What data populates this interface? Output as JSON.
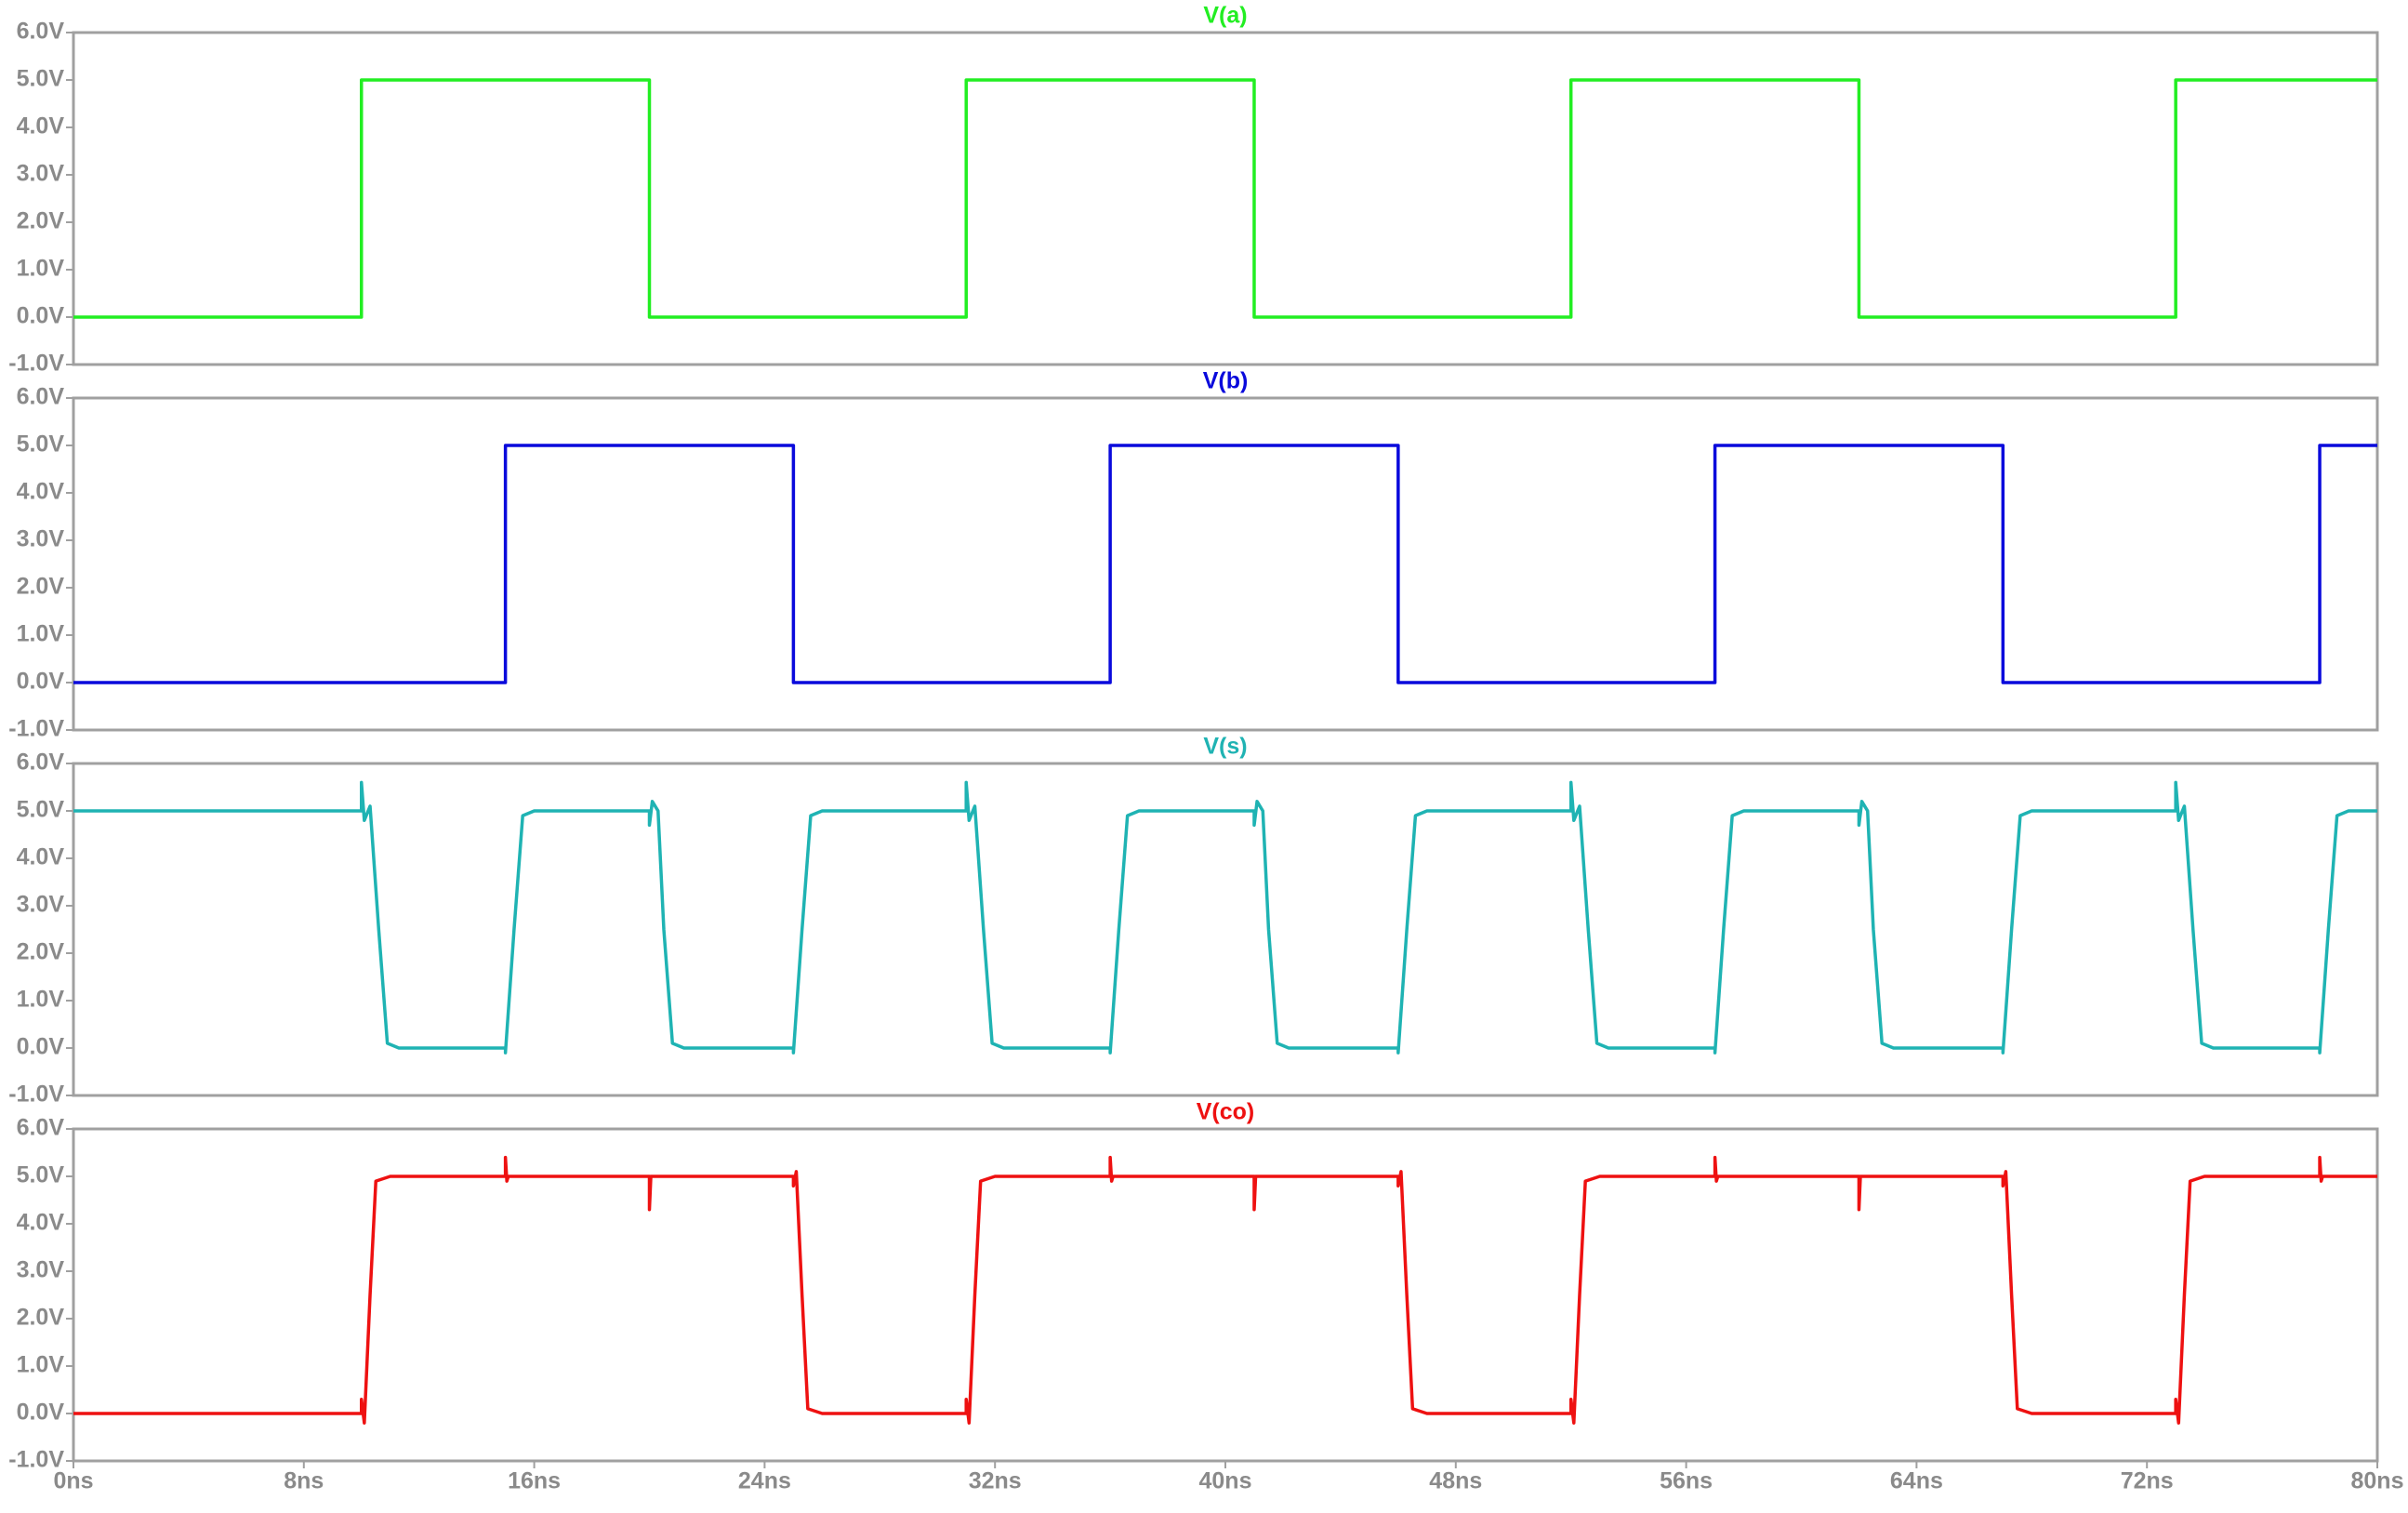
{
  "chart_data": [
    {
      "type": "line",
      "title": "V(a)",
      "color": "#22ee22",
      "x": [
        0,
        10,
        10,
        20,
        20,
        31,
        31,
        41,
        41,
        52,
        52,
        62,
        62,
        73,
        73,
        80
      ],
      "values": [
        0,
        0,
        5,
        5,
        0,
        0,
        5,
        5,
        0,
        0,
        5,
        5,
        0,
        0,
        5,
        5
      ],
      "xlim": [
        0,
        80
      ],
      "ylim": [
        -1,
        6
      ],
      "yticks": [
        {
          "value": -1,
          "label": "-1.0V"
        },
        {
          "value": 0,
          "label": "0.0V"
        },
        {
          "value": 1,
          "label": "1.0V"
        },
        {
          "value": 2,
          "label": "2.0V"
        },
        {
          "value": 3,
          "label": "3.0V"
        },
        {
          "value": 4,
          "label": "4.0V"
        },
        {
          "value": 5,
          "label": "5.0V"
        },
        {
          "value": 6,
          "label": "6.0V"
        }
      ]
    },
    {
      "type": "line",
      "title": "V(b)",
      "color": "#0a0adc",
      "x": [
        0,
        15,
        15,
        25,
        25,
        36,
        36,
        46,
        46,
        57,
        57,
        67,
        67,
        78,
        78,
        80
      ],
      "values": [
        0,
        0,
        5,
        5,
        0,
        0,
        5,
        5,
        0,
        0,
        5,
        5,
        0,
        0,
        5,
        5
      ],
      "xlim": [
        0,
        80
      ],
      "ylim": [
        -1,
        6
      ],
      "yticks": [
        {
          "value": -1,
          "label": "-1.0V"
        },
        {
          "value": 0,
          "label": "0.0V"
        },
        {
          "value": 1,
          "label": "1.0V"
        },
        {
          "value": 2,
          "label": "2.0V"
        },
        {
          "value": 3,
          "label": "3.0V"
        },
        {
          "value": 4,
          "label": "4.0V"
        },
        {
          "value": 5,
          "label": "5.0V"
        },
        {
          "value": 6,
          "label": "6.0V"
        }
      ]
    },
    {
      "type": "line",
      "title": "V(s)",
      "color": "#1fb3b3",
      "x": [
        0,
        10,
        10,
        10.1,
        10.3,
        10.6,
        10.9,
        11.3,
        15,
        15,
        15.3,
        15.6,
        16,
        20,
        20,
        20.1,
        20.3,
        20.5,
        20.8,
        21.2,
        25,
        25,
        25.3,
        25.6,
        26,
        31,
        31,
        31.1,
        31.3,
        31.6,
        31.9,
        32.3,
        36,
        36,
        36.3,
        36.6,
        37,
        41,
        41,
        41.1,
        41.3,
        41.5,
        41.8,
        42.2,
        46,
        46,
        46.3,
        46.6,
        47,
        52,
        52,
        52.1,
        52.3,
        52.6,
        52.9,
        53.3,
        57,
        57,
        57.3,
        57.6,
        58,
        62,
        62,
        62.1,
        62.3,
        62.5,
        62.8,
        63.2,
        67,
        67,
        67.3,
        67.6,
        68,
        73,
        73,
        73.1,
        73.3,
        73.6,
        73.9,
        74.3,
        78,
        78,
        78.3,
        78.6,
        79,
        80
      ],
      "values": [
        5,
        5,
        5.6,
        4.8,
        5.1,
        2.5,
        0.1,
        0,
        0,
        -0.1,
        2.5,
        4.9,
        5,
        5,
        4.7,
        5.2,
        5,
        2.5,
        0.1,
        0,
        0,
        -0.1,
        2.5,
        4.9,
        5,
        5,
        5.6,
        4.8,
        5.1,
        2.5,
        0.1,
        0,
        0,
        -0.1,
        2.5,
        4.9,
        5,
        5,
        4.7,
        5.2,
        5,
        2.5,
        0.1,
        0,
        0,
        -0.1,
        2.5,
        4.9,
        5,
        5,
        5.6,
        4.8,
        5.1,
        2.5,
        0.1,
        0,
        0,
        -0.1,
        2.5,
        4.9,
        5,
        5,
        4.7,
        5.2,
        5,
        2.5,
        0.1,
        0,
        0,
        -0.1,
        2.5,
        4.9,
        5,
        5,
        5.6,
        4.8,
        5.1,
        2.5,
        0.1,
        0,
        0,
        -0.1,
        2.5,
        4.9,
        5,
        5
      ],
      "xlim": [
        0,
        80
      ],
      "ylim": [
        -1,
        6
      ],
      "yticks": [
        {
          "value": -1,
          "label": "-1.0V"
        },
        {
          "value": 0,
          "label": "0.0V"
        },
        {
          "value": 1,
          "label": "1.0V"
        },
        {
          "value": 2,
          "label": "2.0V"
        },
        {
          "value": 3,
          "label": "3.0V"
        },
        {
          "value": 4,
          "label": "4.0V"
        },
        {
          "value": 5,
          "label": "5.0V"
        },
        {
          "value": 6,
          "label": "6.0V"
        }
      ]
    },
    {
      "type": "line",
      "title": "V(co)",
      "color": "#ee1111",
      "x": [
        0,
        10,
        10,
        10.1,
        10.3,
        10.5,
        11,
        15,
        15,
        15.05,
        15.1,
        20,
        20,
        20.05,
        25,
        25,
        25.1,
        25.3,
        25.5,
        26,
        31,
        31,
        31.1,
        31.3,
        31.5,
        32,
        36,
        36,
        36.05,
        36.1,
        41,
        41,
        41.05,
        46,
        46,
        46.1,
        46.3,
        46.5,
        47,
        52,
        52,
        52.1,
        52.3,
        52.5,
        53,
        57,
        57,
        57.05,
        57.1,
        62,
        62,
        62.05,
        67,
        67,
        67.1,
        67.3,
        67.5,
        68,
        73,
        73,
        73.1,
        73.3,
        73.5,
        74,
        78,
        78,
        78.05,
        78.1,
        80
      ],
      "values": [
        0,
        0,
        0.3,
        -0.2,
        2.5,
        4.9,
        5,
        5,
        5.4,
        4.9,
        5,
        5,
        4.3,
        5,
        5,
        4.8,
        5.1,
        2.5,
        0.1,
        0,
        0,
        0.3,
        -0.2,
        2.5,
        4.9,
        5,
        5,
        5.4,
        4.9,
        5,
        5,
        4.3,
        5,
        5,
        4.8,
        5.1,
        2.5,
        0.1,
        0,
        0,
        0.3,
        -0.2,
        2.5,
        4.9,
        5,
        5,
        5.4,
        4.9,
        5,
        5,
        4.3,
        5,
        5,
        4.8,
        5.1,
        2.5,
        0.1,
        0,
        0,
        0.3,
        -0.2,
        2.5,
        4.9,
        5,
        5,
        5.4,
        4.9,
        5,
        5
      ],
      "xlim": [
        0,
        80
      ],
      "ylim": [
        -1,
        6
      ],
      "yticks": [
        {
          "value": -1,
          "label": "-1.0V"
        },
        {
          "value": 0,
          "label": "0.0V"
        },
        {
          "value": 1,
          "label": "1.0V"
        },
        {
          "value": 2,
          "label": "2.0V"
        },
        {
          "value": 3,
          "label": "3.0V"
        },
        {
          "value": 4,
          "label": "4.0V"
        },
        {
          "value": 5,
          "label": "5.0V"
        },
        {
          "value": 6,
          "label": "6.0V"
        }
      ],
      "xticks": [
        {
          "value": 0,
          "label": "0ns"
        },
        {
          "value": 8,
          "label": "8ns"
        },
        {
          "value": 16,
          "label": "16ns"
        },
        {
          "value": 24,
          "label": "24ns"
        },
        {
          "value": 32,
          "label": "32ns"
        },
        {
          "value": 40,
          "label": "40ns"
        },
        {
          "value": 48,
          "label": "48ns"
        },
        {
          "value": 56,
          "label": "56ns"
        },
        {
          "value": 64,
          "label": "64ns"
        },
        {
          "value": 72,
          "label": "72ns"
        },
        {
          "value": 80,
          "label": "80ns"
        }
      ]
    }
  ]
}
